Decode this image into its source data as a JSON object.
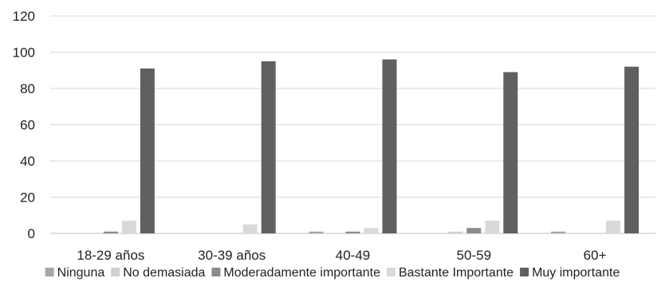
{
  "chart_data": {
    "type": "bar",
    "title": "",
    "xlabel": "",
    "ylabel": "",
    "ylim": [
      0,
      120
    ],
    "yticks": [
      0,
      20,
      40,
      60,
      80,
      100,
      120
    ],
    "grid": true,
    "legend_position": "bottom",
    "categories": [
      "18-29 años",
      "30-39 años",
      "40-49",
      "50-59",
      "60+"
    ],
    "series": [
      {
        "name": "Ninguna",
        "color": "#a6a6a6",
        "values": [
          0,
          0,
          1,
          0,
          1
        ]
      },
      {
        "name": "No demasiada",
        "color": "#d0d0d0",
        "values": [
          0,
          0,
          0,
          1,
          0
        ]
      },
      {
        "name": "Moderadamente importante",
        "color": "#8c8c8c",
        "values": [
          1,
          0,
          1,
          3,
          0
        ]
      },
      {
        "name": "Bastante Importante",
        "color": "#d9d9d9",
        "values": [
          7,
          5,
          3,
          7,
          7
        ]
      },
      {
        "name": "Muy importante",
        "color": "#606060",
        "values": [
          91,
          95,
          96,
          89,
          92
        ]
      }
    ]
  }
}
